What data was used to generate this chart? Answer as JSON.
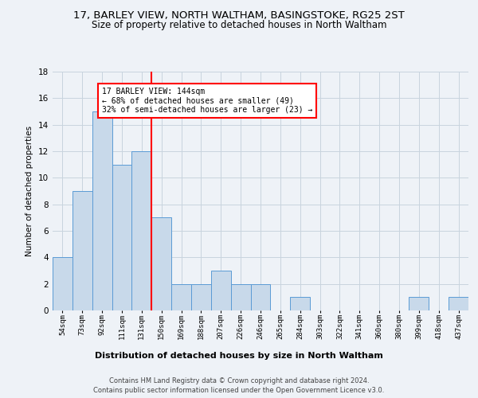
{
  "title_line1": "17, BARLEY VIEW, NORTH WALTHAM, BASINGSTOKE, RG25 2ST",
  "title_line2": "Size of property relative to detached houses in North Waltham",
  "xlabel": "Distribution of detached houses by size in North Waltham",
  "ylabel": "Number of detached properties",
  "bin_labels": [
    "54sqm",
    "73sqm",
    "92sqm",
    "111sqm",
    "131sqm",
    "150sqm",
    "169sqm",
    "188sqm",
    "207sqm",
    "226sqm",
    "246sqm",
    "265sqm",
    "284sqm",
    "303sqm",
    "322sqm",
    "341sqm",
    "360sqm",
    "380sqm",
    "399sqm",
    "418sqm",
    "437sqm"
  ],
  "bar_heights": [
    4,
    9,
    15,
    11,
    12,
    7,
    2,
    2,
    3,
    2,
    2,
    0,
    1,
    0,
    0,
    0,
    0,
    0,
    1,
    0,
    1
  ],
  "bar_color": "#c8d9ea",
  "bar_edge_color": "#5b9bd5",
  "grid_color": "#c8d4de",
  "annotation_text": "17 BARLEY VIEW: 144sqm\n← 68% of detached houses are smaller (49)\n32% of semi-detached houses are larger (23) →",
  "annotation_box_color": "white",
  "annotation_box_edge": "red",
  "vline_color": "red",
  "ylim": [
    0,
    18
  ],
  "yticks": [
    0,
    2,
    4,
    6,
    8,
    10,
    12,
    14,
    16,
    18
  ],
  "footer_line1": "Contains HM Land Registry data © Crown copyright and database right 2024.",
  "footer_line2": "Contains public sector information licensed under the Open Government Licence v3.0.",
  "title_fontsize": 9.5,
  "subtitle_fontsize": 8.5,
  "bar_width": 1.0,
  "background_color": "#eef2f7"
}
